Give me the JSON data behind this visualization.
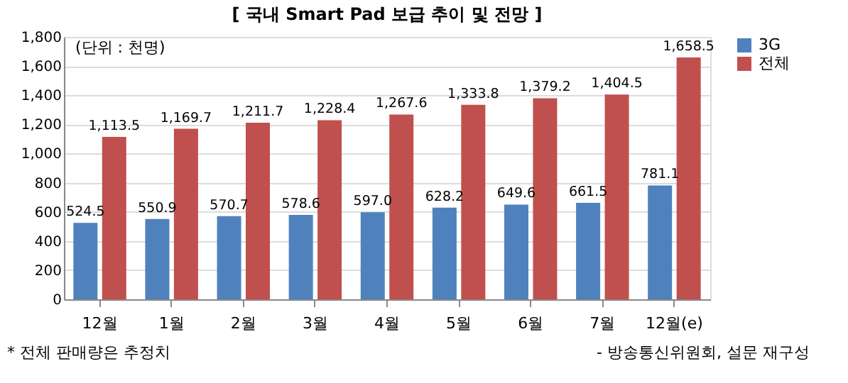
{
  "chart_data": {
    "type": "bar",
    "title": "[ 국내 Smart Pad 보급 추이 및 전망 ]",
    "categories": [
      "12월",
      "1월",
      "2월",
      "3월",
      "4월",
      "5월",
      "6월",
      "7월",
      "12월(e)"
    ],
    "series": [
      {
        "name": "3G",
        "color": "#4f81bd",
        "values": [
          524.5,
          550.9,
          570.7,
          578.6,
          597.0,
          628.2,
          649.6,
          661.5,
          781.1
        ],
        "value_labels": [
          "524.5",
          "550.9",
          "570.7",
          "578.6",
          "597.0",
          "628.2",
          "649.6",
          "661.5",
          "781.1"
        ]
      },
      {
        "name": "전체",
        "color": "#c0504d",
        "values": [
          1113.5,
          1169.7,
          1211.7,
          1228.4,
          1267.6,
          1333.8,
          1379.2,
          1404.5,
          1658.5
        ],
        "value_labels": [
          "1,113.5",
          "1,169.7",
          "1,211.7",
          "1,228.4",
          "1,267.6",
          "1,333.8",
          "1,379.2",
          "1,404.5",
          "1,658.5"
        ]
      }
    ],
    "ylim": [
      0,
      1800
    ],
    "yticks": [
      0,
      200,
      400,
      600,
      800,
      {
        "value": 1000,
        "label": "1,000"
      },
      {
        "value": 1200,
        "label": "1,200"
      },
      {
        "value": 1400,
        "label": "1,400"
      },
      {
        "value": 1600,
        "label": "1,600"
      },
      {
        "value": 1800,
        "label": "1,800"
      }
    ],
    "grid": "y",
    "legend": "right",
    "annotations": [
      "(단위 : 천명)",
      "* 전체 판매량은 추정치",
      "- 방송통신위원회, 설문 재구성"
    ]
  }
}
